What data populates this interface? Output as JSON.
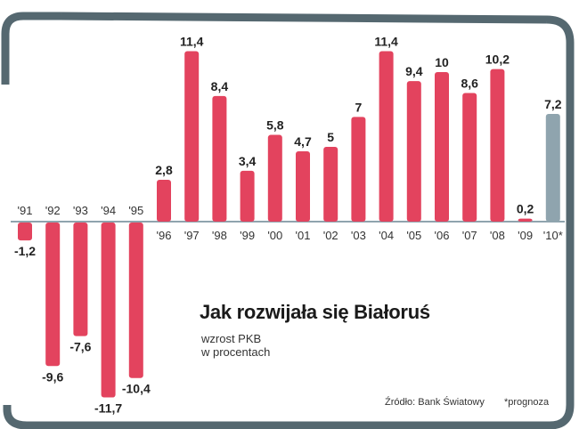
{
  "chart_data": {
    "type": "bar",
    "title": "Jak rozwijała się Białoruś",
    "subtitle_line1": "wzrost PKB",
    "subtitle_line2": "w procentach",
    "categories": [
      "'91",
      "'92",
      "'93",
      "'94",
      "'95",
      "'96",
      "'97",
      "'98",
      "'99",
      "'00",
      "'01",
      "'02",
      "'03",
      "'04",
      "'05",
      "'06",
      "'07",
      "'08",
      "'09",
      "'10*"
    ],
    "value_labels": [
      "-1,2",
      "-9,6",
      "-7,6",
      "-11,7",
      "-10,4",
      "2,8",
      "11,4",
      "8,4",
      "3,4",
      "5,8",
      "4,7",
      "5",
      "7",
      "11,4",
      "9,4",
      "10",
      "8,6",
      "10,2",
      "0,2",
      "7,2"
    ],
    "series": [
      {
        "values": [
          -1.2,
          -9.6,
          -7.6,
          -11.7,
          -10.4,
          2.8,
          11.4,
          8.4,
          3.4,
          5.8,
          4.7,
          5,
          7,
          11.4,
          9.4,
          10,
          8.6,
          10.2,
          0.2,
          7.2
        ]
      }
    ],
    "forecast_index": [
      19
    ],
    "ylim": [
      -11.7,
      11.4
    ],
    "grid": false,
    "colors": {
      "bar": "#e3435e",
      "forecast": "#8fa4ae",
      "axis": "#8fa4ae",
      "frame": "#556870"
    },
    "source": "Źródło: Bank Światowy",
    "note": "*prognoza"
  }
}
